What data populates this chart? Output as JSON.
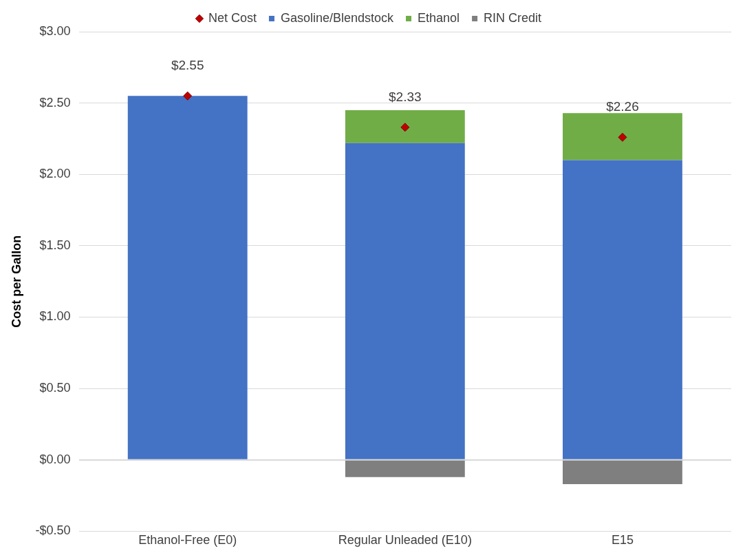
{
  "chart_data": {
    "type": "bar",
    "stacked": true,
    "ylabel": "Cost per Gallon",
    "categories": [
      "Ethanol-Free (E0)",
      "Regular Unleaded (E10)",
      "E15"
    ],
    "series": [
      {
        "name": "Gasoline/Blendstock",
        "color": "#4472c4",
        "values": [
          2.55,
          2.22,
          2.1
        ]
      },
      {
        "name": "Ethanol",
        "color": "#70ad47",
        "values": [
          null,
          0.23,
          0.33
        ]
      },
      {
        "name": "RIN Credit",
        "color": "#7f7f7f",
        "values": [
          null,
          -0.12,
          -0.17
        ]
      },
      {
        "name": "Net Cost",
        "type": "scatter",
        "color": "#c00000",
        "x": [
          "Ethanol-Free (E0)",
          "Regular Unleaded (E10)",
          "E15"
        ],
        "values": [
          2.55,
          2.33,
          2.26
        ],
        "value_labels": [
          "$2.55",
          "$2.33",
          "$2.26"
        ]
      }
    ],
    "ylim": [
      -0.5,
      3
    ],
    "yticks": [
      {
        "value": -0.5,
        "label": "-$0.50"
      },
      {
        "value": 0,
        "label": "$0.00"
      },
      {
        "value": 0.5,
        "label": "$0.50"
      },
      {
        "value": 1,
        "label": "$1.00"
      },
      {
        "value": 1.5,
        "label": "$1.50"
      },
      {
        "value": 2,
        "label": "$2.00"
      },
      {
        "value": 2.5,
        "label": "$2.50"
      },
      {
        "value": 3,
        "label": "$3.00"
      }
    ],
    "grid": "y",
    "legend": "top",
    "marker": "diamond"
  }
}
